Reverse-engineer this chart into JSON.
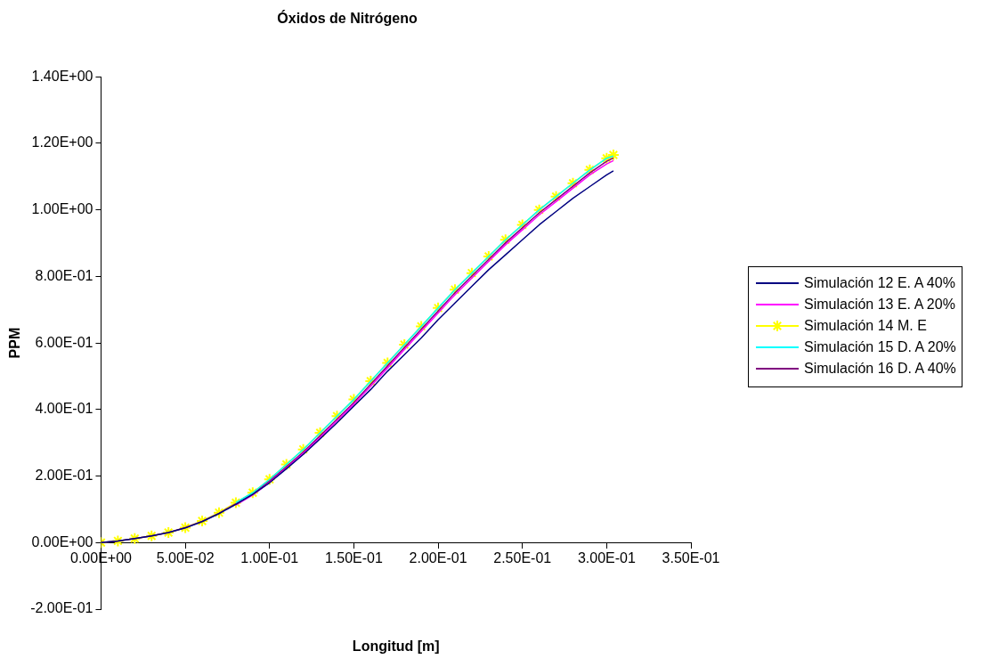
{
  "chart_data": {
    "type": "line",
    "title": "Óxidos de Nitrógeno",
    "xlabel": "Longitud [m]",
    "ylabel": "PPM",
    "x": [
      0,
      0.01,
      0.02,
      0.03,
      0.04,
      0.05,
      0.06,
      0.07,
      0.08,
      0.09,
      0.1,
      0.11,
      0.12,
      0.13,
      0.14,
      0.15,
      0.16,
      0.17,
      0.18,
      0.19,
      0.2,
      0.21,
      0.22,
      0.23,
      0.24,
      0.25,
      0.26,
      0.27,
      0.28,
      0.29,
      0.3,
      0.304
    ],
    "series": [
      {
        "name": "Simulación 12 E. A 40%",
        "color": "#000080",
        "marker": "none",
        "values": [
          0,
          0.005,
          0.012,
          0.02,
          0.03,
          0.044,
          0.063,
          0.087,
          0.115,
          0.145,
          0.18,
          0.222,
          0.265,
          0.312,
          0.36,
          0.41,
          0.46,
          0.515,
          0.565,
          0.615,
          0.67,
          0.72,
          0.77,
          0.82,
          0.865,
          0.91,
          0.955,
          0.995,
          1.035,
          1.07,
          1.105,
          1.117
        ]
      },
      {
        "name": "Simulación 13 E. A 20%",
        "color": "#ff00ff",
        "marker": "none",
        "values": [
          null,
          null,
          null,
          null,
          null,
          null,
          null,
          null,
          0.113,
          0.143,
          0.181,
          0.224,
          0.268,
          0.316,
          0.366,
          0.416,
          0.47,
          0.525,
          0.58,
          0.635,
          0.69,
          0.745,
          0.795,
          0.845,
          0.895,
          0.94,
          0.985,
          1.025,
          1.065,
          1.105,
          1.138,
          1.148
        ]
      },
      {
        "name": "Simulación 14 M. E",
        "color": "#ffff00",
        "marker": "cross",
        "values": [
          0,
          0.005,
          0.012,
          0.02,
          0.03,
          0.045,
          0.065,
          0.09,
          0.12,
          0.15,
          0.19,
          0.235,
          0.28,
          0.33,
          0.38,
          0.43,
          0.485,
          0.54,
          0.595,
          0.65,
          0.705,
          0.76,
          0.81,
          0.86,
          0.91,
          0.955,
          1.0,
          1.04,
          1.08,
          1.12,
          1.155,
          1.165
        ]
      },
      {
        "name": "Simulación 15 D. A 20%",
        "color": "#00ffff",
        "marker": "none",
        "values": [
          null,
          null,
          null,
          null,
          null,
          null,
          null,
          null,
          0.12,
          0.15,
          0.19,
          0.235,
          0.28,
          0.33,
          0.38,
          0.43,
          0.485,
          0.54,
          0.595,
          0.65,
          0.705,
          0.76,
          0.81,
          0.86,
          0.91,
          0.955,
          1.0,
          1.04,
          1.08,
          1.12,
          1.155,
          1.162
        ]
      },
      {
        "name": "Simulación 16 D. A 40%",
        "color": "#800080",
        "marker": "none",
        "values": [
          0,
          0.005,
          0.012,
          0.02,
          0.03,
          0.045,
          0.064,
          0.088,
          0.117,
          0.146,
          0.185,
          0.228,
          0.272,
          0.321,
          0.371,
          0.421,
          0.476,
          0.531,
          0.586,
          0.641,
          0.696,
          0.751,
          0.801,
          0.851,
          0.901,
          0.946,
          0.991,
          1.031,
          1.071,
          1.111,
          1.146,
          1.156
        ]
      }
    ],
    "xlim": [
      0,
      0.35
    ],
    "ylim": [
      -0.2,
      1.4
    ],
    "xticks": [
      {
        "value": 0,
        "label": "0.00E+00"
      },
      {
        "value": 0.05,
        "label": "5.00E-02"
      },
      {
        "value": 0.1,
        "label": "1.00E-01"
      },
      {
        "value": 0.15,
        "label": "1.50E-01"
      },
      {
        "value": 0.2,
        "label": "2.00E-01"
      },
      {
        "value": 0.25,
        "label": "2.50E-01"
      },
      {
        "value": 0.3,
        "label": "3.00E-01"
      },
      {
        "value": 0.35,
        "label": "3.50E-01"
      }
    ],
    "yticks": [
      {
        "value": -0.2,
        "label": "-2.00E-01"
      },
      {
        "value": 0,
        "label": "0.00E+00"
      },
      {
        "value": 0.2,
        "label": "2.00E-01"
      },
      {
        "value": 0.4,
        "label": "4.00E-01"
      },
      {
        "value": 0.6,
        "label": "6.00E-01"
      },
      {
        "value": 0.8,
        "label": "8.00E-01"
      },
      {
        "value": 1.0,
        "label": "1.00E+00"
      },
      {
        "value": 1.2,
        "label": "1.20E+00"
      },
      {
        "value": 1.4,
        "label": "1.40E+00"
      }
    ],
    "grid": false,
    "legend": "right",
    "line_style": "solid"
  }
}
